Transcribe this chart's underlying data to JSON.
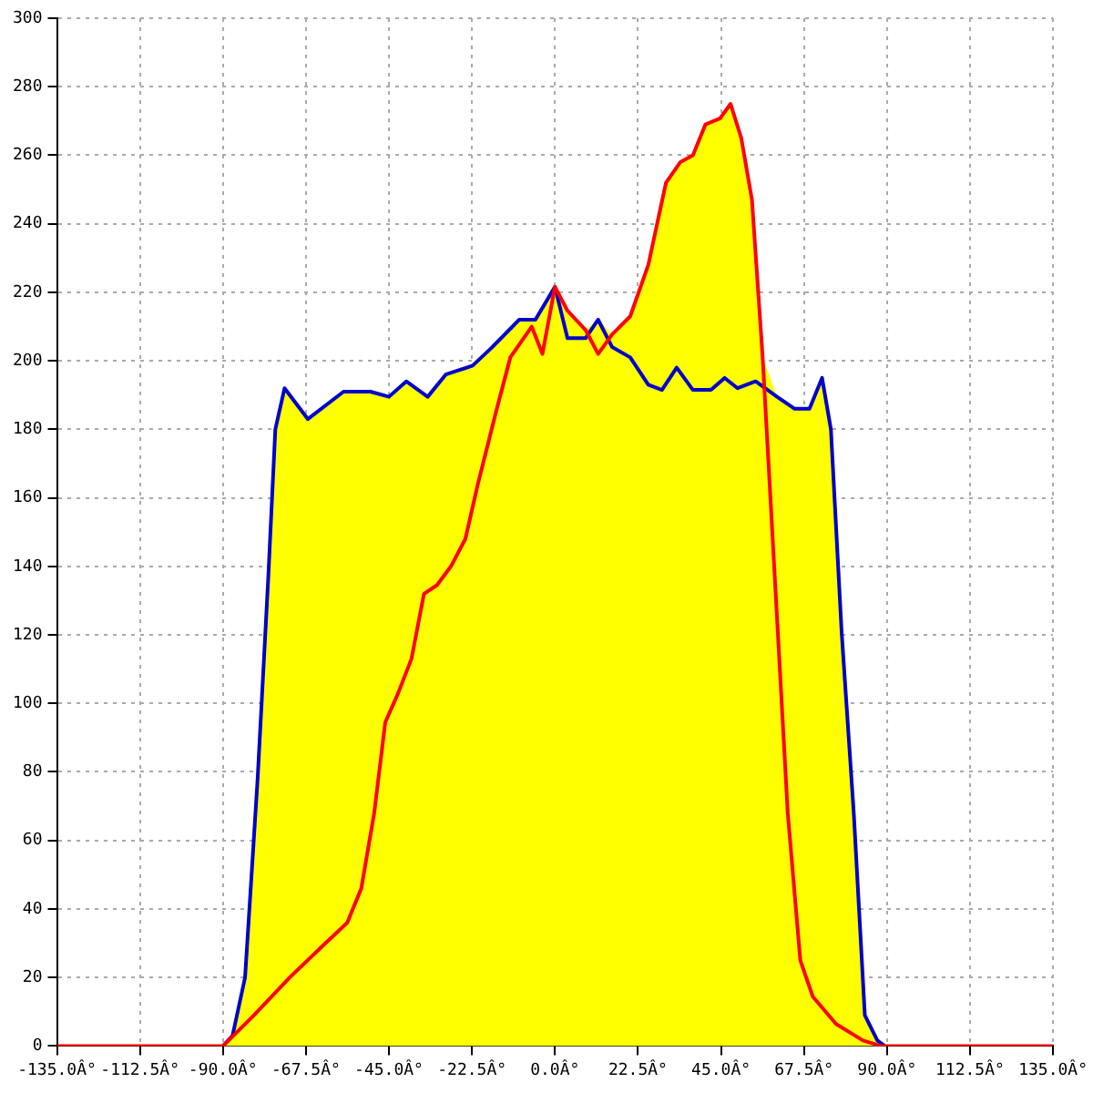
{
  "chart_data": {
    "type": "line",
    "xlim": [
      -135,
      135
    ],
    "xticks": [
      {
        "value": -135,
        "label": "-135.0Â°"
      },
      {
        "value": -112.5,
        "label": "-112.5Â°"
      },
      {
        "value": -90,
        "label": "-90.0Â°"
      },
      {
        "value": -67.5,
        "label": "-67.5Â°"
      },
      {
        "value": -45,
        "label": "-45.0Â°"
      },
      {
        "value": -22.5,
        "label": "-22.5Â°"
      },
      {
        "value": 0,
        "label": "0.0Â°"
      },
      {
        "value": 22.5,
        "label": "22.5Â°"
      },
      {
        "value": 45,
        "label": "45.0Â°"
      },
      {
        "value": 67.5,
        "label": "67.5Â°"
      },
      {
        "value": 90,
        "label": "90.0Â°"
      },
      {
        "value": 112.5,
        "label": "112.5Â°"
      },
      {
        "value": 135,
        "label": "135.0Â°"
      }
    ],
    "ylim": [
      0,
      300
    ],
    "yticks": [
      0,
      20,
      40,
      60,
      80,
      100,
      120,
      140,
      160,
      180,
      200,
      220,
      240,
      260,
      280,
      300
    ],
    "grid": true,
    "legend": false,
    "marker": "none",
    "line_style": "solid",
    "series": [
      {
        "type": "area",
        "color": "#ffff00",
        "x": [
          -90,
          -87.4,
          -84,
          -80.6,
          -77.7,
          -75.8,
          -73.3,
          -67,
          -57.3,
          -50,
          -45,
          -40.3,
          -34.5,
          -29.6,
          -22.3,
          -17,
          -9.7,
          -5.3,
          0,
          3.4,
          8.3,
          11.7,
          15.5,
          20.4,
          25.3,
          30.1,
          34,
          37.4,
          40.8,
          44.7,
          47.6,
          50.5,
          53.4,
          56.3,
          60.2,
          65,
          69,
          72.4,
          74.8,
          77.7,
          81,
          84,
          87.4,
          89.4
        ],
        "values": [
          0,
          3,
          20,
          78,
          137,
          180,
          192,
          183,
          191,
          191,
          189.5,
          194,
          189.5,
          196,
          198.6,
          204,
          212,
          212,
          221.6,
          214.6,
          209,
          212,
          207.7,
          213,
          228,
          252,
          258,
          260,
          269,
          270.7,
          275,
          265,
          247,
          201,
          189.5,
          186,
          186,
          195,
          180,
          121,
          68,
          9,
          1.6,
          0
        ]
      },
      {
        "color": "#0000cc",
        "x": [
          -90,
          -87.4,
          -84,
          -80.6,
          -77.7,
          -75.8,
          -73.3,
          -67,
          -57.3,
          -50,
          -45,
          -40.3,
          -34.5,
          -29.6,
          -22.3,
          -17,
          -9.7,
          -5.3,
          0,
          3.4,
          8.3,
          11.7,
          15.5,
          20.4,
          25.3,
          29,
          33,
          37.4,
          42.3,
          46,
          49.5,
          54.4,
          60.2,
          65,
          69,
          72.4,
          74.8,
          77.7,
          81,
          84,
          87.4,
          89.4
        ],
        "values": [
          0,
          3,
          20,
          78,
          137,
          180,
          192,
          183,
          191,
          191,
          189.5,
          194,
          189.5,
          196,
          198.6,
          204,
          212,
          212,
          221.6,
          206.6,
          206.6,
          212,
          204,
          201,
          193,
          191.5,
          198,
          191.5,
          191.5,
          195,
          192,
          194,
          189.5,
          186,
          186,
          195,
          180,
          121,
          68,
          9,
          1.6,
          0
        ]
      },
      {
        "color": "#ff0000",
        "x": [
          -135,
          -90,
          -81.6,
          -71.9,
          -62.2,
          -56.3,
          -52.5,
          -49,
          -46,
          -42.7,
          -38.9,
          -35.5,
          -32,
          -28.2,
          -24.3,
          -20.9,
          -16,
          -12.1,
          -6.3,
          -3.4,
          0,
          3.4,
          8.3,
          11.7,
          15.5,
          20.4,
          25.3,
          30.1,
          34,
          37.4,
          40.8,
          44.7,
          47.6,
          50.5,
          53.4,
          56.3,
          59.3,
          63.1,
          66.5,
          69.9,
          76.2,
          83.5,
          88.4,
          135
        ],
        "values": [
          0,
          0,
          9,
          20,
          30,
          36,
          46,
          68,
          94.5,
          102.5,
          113,
          132,
          134.5,
          140,
          148,
          164,
          185,
          201,
          210,
          202,
          221.6,
          214.6,
          209,
          202,
          207.7,
          213,
          228,
          252,
          258,
          260,
          269,
          270.7,
          275,
          265,
          247,
          201,
          142.5,
          68,
          25,
          14.4,
          6.4,
          1.6,
          0,
          0
        ]
      }
    ]
  }
}
